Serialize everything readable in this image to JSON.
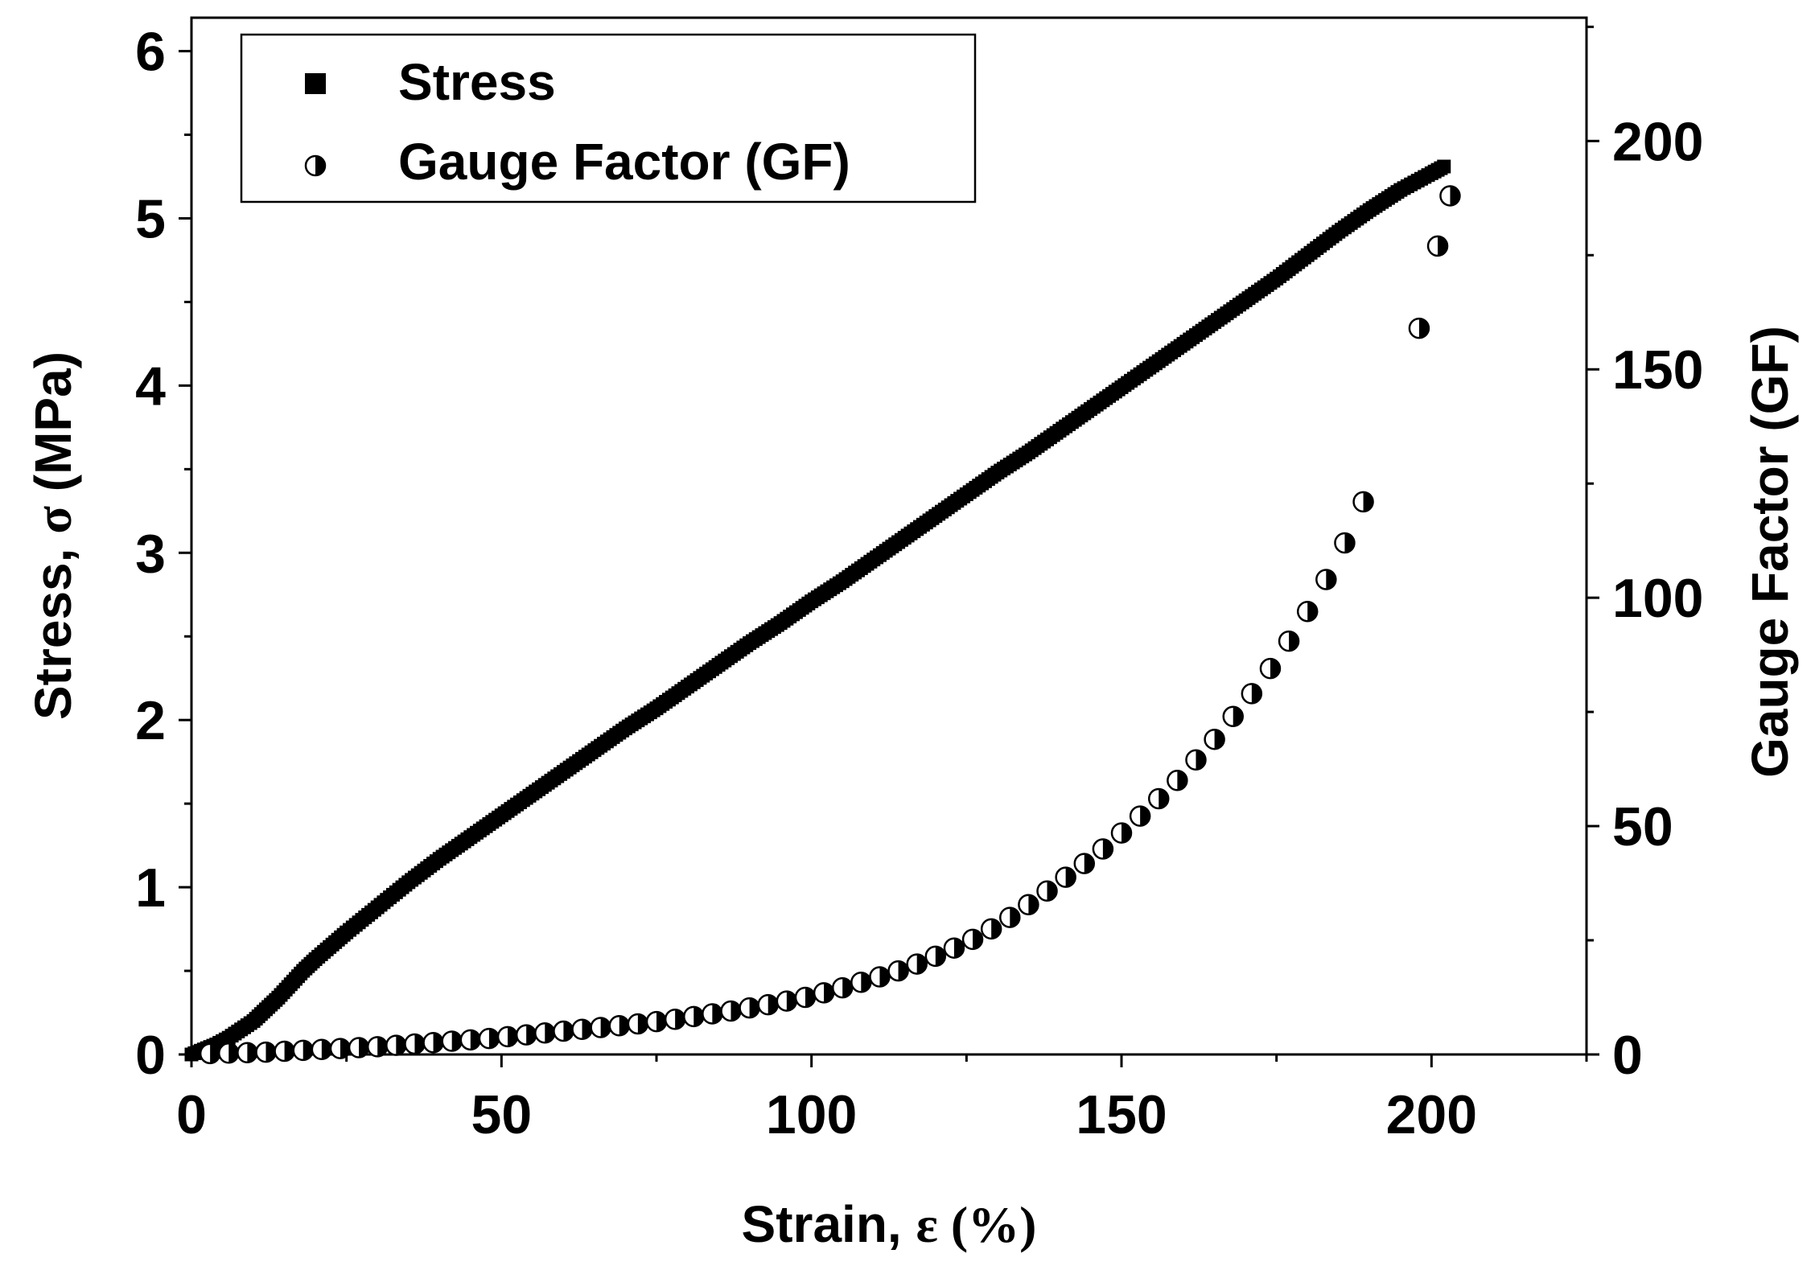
{
  "chart_data": {
    "type": "scatter",
    "title": "",
    "xlabel": "Strain, ε (%)",
    "xlabel_parts": {
      "main": "Strain, ",
      "symbol": "ε",
      "unit": " (%)"
    },
    "ylabel": "Stress, σ (MPa)",
    "ylabel_parts": {
      "main": "Stress, ",
      "symbol": "σ",
      "unit": " (MPa)"
    },
    "y2label": "Gauge Factor (GF)",
    "xlim": [
      0,
      225
    ],
    "ylim": [
      0,
      6.2
    ],
    "y2lim": [
      0,
      227
    ],
    "x_ticks": [
      "0",
      "50",
      "100",
      "150",
      "200"
    ],
    "y_ticks": [
      "0",
      "1",
      "2",
      "3",
      "4",
      "5",
      "6"
    ],
    "y2_ticks": [
      "0",
      "50",
      "100",
      "150",
      "200"
    ],
    "legend": {
      "position": "top-left",
      "entries": [
        "Stress",
        "Gauge Factor (GF)"
      ]
    },
    "series": [
      {
        "name": "Stress",
        "axis": "left",
        "marker": "filled-square",
        "x": [
          0,
          2,
          4,
          6,
          8,
          10,
          12,
          14,
          16,
          18,
          20,
          25,
          30,
          35,
          40,
          45,
          50,
          55,
          60,
          65,
          70,
          75,
          80,
          85,
          90,
          95,
          100,
          105,
          110,
          115,
          120,
          125,
          130,
          135,
          140,
          145,
          150,
          155,
          160,
          165,
          170,
          175,
          180,
          185,
          190,
          195,
          200,
          202
        ],
        "y": [
          0.0,
          0.03,
          0.06,
          0.1,
          0.15,
          0.2,
          0.27,
          0.34,
          0.42,
          0.5,
          0.57,
          0.73,
          0.88,
          1.03,
          1.17,
          1.3,
          1.43,
          1.56,
          1.69,
          1.82,
          1.95,
          2.07,
          2.2,
          2.33,
          2.46,
          2.58,
          2.71,
          2.83,
          2.96,
          3.09,
          3.22,
          3.35,
          3.48,
          3.6,
          3.73,
          3.86,
          3.99,
          4.12,
          4.25,
          4.38,
          4.51,
          4.64,
          4.78,
          4.92,
          5.05,
          5.17,
          5.27,
          5.31
        ]
      },
      {
        "name": "Gauge Factor (GF)",
        "axis": "right",
        "marker": "half-filled-circle",
        "x": [
          3,
          6,
          9,
          12,
          15,
          18,
          21,
          24,
          27,
          30,
          33,
          36,
          39,
          42,
          45,
          48,
          51,
          54,
          57,
          60,
          63,
          66,
          69,
          72,
          75,
          78,
          81,
          84,
          87,
          90,
          93,
          96,
          99,
          102,
          105,
          108,
          111,
          114,
          117,
          120,
          123,
          126,
          129,
          132,
          135,
          138,
          141,
          144,
          147,
          150,
          153,
          156,
          159,
          162,
          165,
          168,
          171,
          174,
          177,
          180,
          183,
          186,
          189,
          198,
          201,
          203
        ],
        "y": [
          0.2,
          0.3,
          0.4,
          0.5,
          0.7,
          0.9,
          1.1,
          1.3,
          1.5,
          1.7,
          2.0,
          2.3,
          2.6,
          2.9,
          3.2,
          3.5,
          3.9,
          4.3,
          4.7,
          5.1,
          5.5,
          5.9,
          6.3,
          6.7,
          7.2,
          7.7,
          8.3,
          8.9,
          9.5,
          10.2,
          10.9,
          11.7,
          12.5,
          13.5,
          14.6,
          15.8,
          17.0,
          18.3,
          19.8,
          21.5,
          23.3,
          25.2,
          27.5,
          30.0,
          32.8,
          35.8,
          38.8,
          41.8,
          45.0,
          48.5,
          52.2,
          56.0,
          60.0,
          64.5,
          69.0,
          74.0,
          79.0,
          84.5,
          90.5,
          97.0,
          104.0,
          112.0,
          121.0,
          159.0,
          177.0,
          188.0
        ]
      }
    ]
  }
}
